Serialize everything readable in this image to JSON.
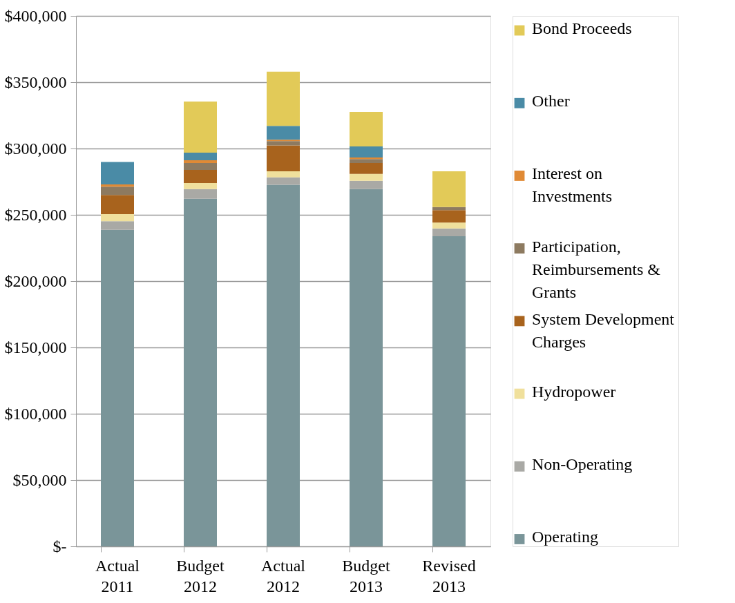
{
  "chart_data": {
    "type": "bar",
    "stacked": true,
    "categories": [
      "Actual 2011",
      "Budget 2012",
      "Actual 2012",
      "Budget 2013",
      "Revised 2013"
    ],
    "series": [
      {
        "name": "Operating",
        "color": "#7a9599",
        "values": [
          238700,
          262100,
          272600,
          269400,
          233900
        ]
      },
      {
        "name": "Non-Operating",
        "color": "#a9a9a5",
        "values": [
          6500,
          7300,
          5700,
          6300,
          5800
        ]
      },
      {
        "name": "Hydropower",
        "color": "#f0e09c",
        "values": [
          5300,
          4500,
          4500,
          5200,
          4400
        ]
      },
      {
        "name": "System Development Charges",
        "color": "#a8631d",
        "values": [
          14500,
          10000,
          19600,
          8200,
          9400
        ]
      },
      {
        "name": "Participation, Reimbursements & Grants",
        "color": "#8d7a60",
        "values": [
          6200,
          5200,
          3200,
          2900,
          2400
        ]
      },
      {
        "name": "Interest on Investments",
        "color": "#e08a35",
        "values": [
          1700,
          2000,
          1000,
          1200,
          0
        ]
      },
      {
        "name": "Other",
        "color": "#4a8ba6",
        "values": [
          17000,
          5800,
          10400,
          8400,
          0
        ]
      },
      {
        "name": "Bond Proceeds",
        "color": "#e2ca58",
        "values": [
          0,
          38500,
          41000,
          26000,
          26900
        ]
      }
    ],
    "ylim": [
      0,
      400000
    ],
    "yticks": [
      {
        "value": 0,
        "label": "$-"
      },
      {
        "value": 50000,
        "label": "$50,000"
      },
      {
        "value": 100000,
        "label": "$100,000"
      },
      {
        "value": 150000,
        "label": "$150,000"
      },
      {
        "value": 200000,
        "label": "$200,000"
      },
      {
        "value": 250000,
        "label": "$250,000"
      },
      {
        "value": 300000,
        "label": "$300,000"
      },
      {
        "value": 350000,
        "label": "$350,000"
      },
      {
        "value": 400000,
        "label": "$400,000"
      }
    ],
    "grid": "y",
    "legend": "right"
  }
}
